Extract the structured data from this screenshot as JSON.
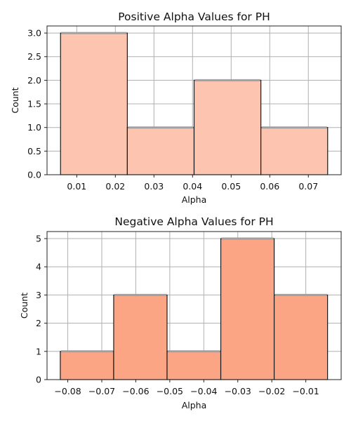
{
  "chart_data": [
    {
      "type": "bar",
      "subtype": "histogram",
      "title": "Positive Alpha Values for PH",
      "xlabel": "Alpha",
      "ylabel": "Count",
      "bin_edges": [
        0.0058,
        0.0231,
        0.0404,
        0.0577,
        0.075
      ],
      "values": [
        3,
        1,
        2,
        1
      ],
      "xlim": [
        0.0023,
        0.0785
      ],
      "ylim": [
        0,
        3.15
      ],
      "xticks": [
        0.01,
        0.02,
        0.03,
        0.04,
        0.05,
        0.06,
        0.07
      ],
      "xtick_labels": [
        "0.01",
        "0.02",
        "0.03",
        "0.04",
        "0.05",
        "0.06",
        "0.07"
      ],
      "yticks": [
        0,
        0.5,
        1,
        1.5,
        2,
        2.5,
        3
      ],
      "ytick_labels": [
        "0.0",
        "0.5",
        "1.0",
        "1.5",
        "2.0",
        "2.5",
        "3.0"
      ],
      "color": "#fdc5af",
      "grid": true,
      "legend": "none"
    },
    {
      "type": "bar",
      "subtype": "histogram",
      "title": "Negative Alpha Values for PH",
      "xlabel": "Alpha",
      "ylabel": "Count",
      "bin_edges": [
        -0.0822,
        -0.0665,
        -0.0508,
        -0.035,
        -0.0193,
        -0.0036
      ],
      "values": [
        1,
        3,
        1,
        5,
        3
      ],
      "xlim": [
        -0.0861,
        0.0004
      ],
      "ylim": [
        0,
        5.25
      ],
      "xticks": [
        -0.08,
        -0.07,
        -0.06,
        -0.05,
        -0.04,
        -0.03,
        -0.02,
        -0.01
      ],
      "xtick_labels": [
        "−0.08",
        "−0.07",
        "−0.06",
        "−0.05",
        "−0.04",
        "−0.03",
        "−0.02",
        "−0.01"
      ],
      "yticks": [
        0,
        1,
        2,
        3,
        4,
        5
      ],
      "ytick_labels": [
        "0",
        "1",
        "2",
        "3",
        "4",
        "5"
      ],
      "color": "#fca584",
      "grid": true,
      "legend": "none"
    }
  ]
}
